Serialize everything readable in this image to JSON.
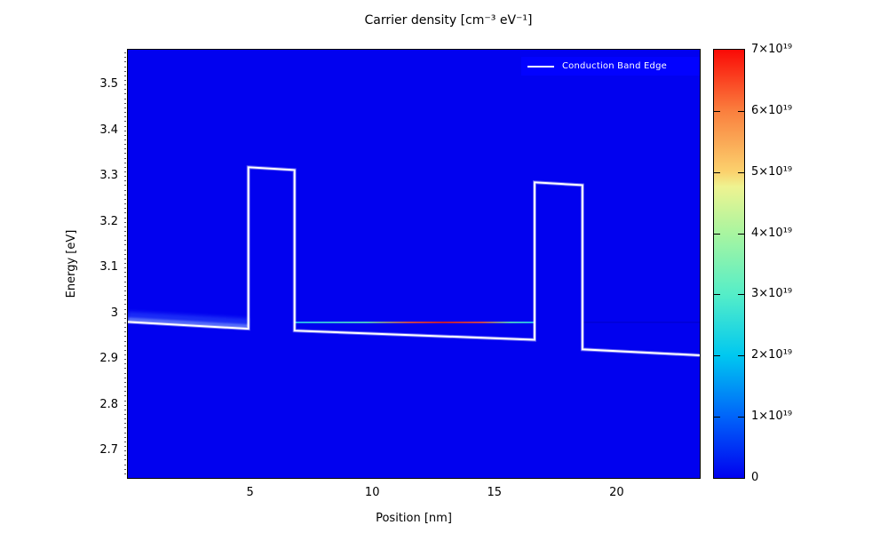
{
  "chart_data": {
    "type": "heatmap",
    "title": "Carrier density [cm⁻³ eV⁻¹]",
    "xlabel": "Position [nm]",
    "ylabel": "Energy [eV]",
    "xlim": [
      0,
      23.4
    ],
    "ylim": [
      2.64,
      3.576
    ],
    "xtick_labels": [
      "5",
      "10",
      "15",
      "20"
    ],
    "ytick_labels": [
      "3.5",
      "3.4",
      "3.3",
      "3.2",
      "3.1",
      "3",
      "2.9",
      "2.8",
      "2.7"
    ],
    "grid": false,
    "background_value": 0,
    "legend": {
      "position": "top-right",
      "background": "#0202ff",
      "entries": [
        {
          "label": "Conduction Band Edge",
          "color": "#ffffff"
        }
      ]
    },
    "colorbar": {
      "min": 0,
      "max": 7e+19,
      "tick_values": [
        0,
        1e+19,
        2e+19,
        3e+19,
        4e+19,
        5e+19,
        6e+19,
        7e+19
      ],
      "tick_labels": [
        "0",
        "1×10¹⁹",
        "2×10¹⁹",
        "3×10¹⁹",
        "4×10¹⁹",
        "5×10¹⁹",
        "6×10¹⁹",
        "7×10¹⁹"
      ],
      "colormap": [
        {
          "pos": 0.0,
          "color": "#0101ef"
        },
        {
          "pos": 0.143,
          "color": "#0064fa"
        },
        {
          "pos": 0.286,
          "color": "#00c8f0"
        },
        {
          "pos": 0.429,
          "color": "#55eec8"
        },
        {
          "pos": 0.571,
          "color": "#a8f5a0"
        },
        {
          "pos": 0.68,
          "color": "#eef391"
        },
        {
          "pos": 0.714,
          "color": "#fbd26e"
        },
        {
          "pos": 0.857,
          "color": "#fa7f3e"
        },
        {
          "pos": 1.0,
          "color": "#fa0a06"
        }
      ]
    },
    "overlay_line": {
      "name": "Conduction Band Edge",
      "color": "#ffffff",
      "points_nm_eV": [
        [
          0,
          2.981
        ],
        [
          4.93,
          2.966
        ],
        [
          4.93,
          3.319
        ],
        [
          6.82,
          3.313
        ],
        [
          6.82,
          2.962
        ],
        [
          16.64,
          2.942
        ],
        [
          16.64,
          3.286
        ],
        [
          18.6,
          3.28
        ],
        [
          18.6,
          2.921
        ],
        [
          23.4,
          2.908
        ]
      ]
    },
    "density_features": [
      {
        "kind": "well-state-line",
        "energy_eV": 2.98,
        "x_range_nm": [
          6.82,
          16.64
        ],
        "note": "quantum-well state: density peaks red (~7×10¹⁹) at well center, cyan near barriers",
        "gradient": [
          [
            "0%",
            "#2bd8f0"
          ],
          [
            "30%",
            "#55e8c0"
          ],
          [
            "48%",
            "#f05030"
          ],
          [
            "62%",
            "#e82010"
          ],
          [
            "78%",
            "#f05030"
          ],
          [
            "90%",
            "#55e8c0"
          ],
          [
            "100%",
            "#2bd8f0"
          ]
        ]
      },
      {
        "kind": "contact-glow",
        "x_range_nm": [
          0,
          4.93
        ],
        "energy_start_eV": 2.981,
        "energy_end_eV": 2.966,
        "near_color": "#7a9bff",
        "far_color": "#3a5bff"
      },
      {
        "kind": "faint-line",
        "energy_eV": 2.98,
        "x_range_nm": [
          18.6,
          23.4
        ],
        "color": "#0000c6"
      }
    ]
  }
}
